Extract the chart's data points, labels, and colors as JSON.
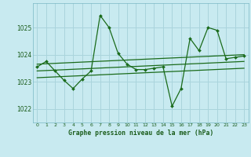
{
  "title": "Graphe pression niveau de la mer (hPa)",
  "bg_color": "#c8eaf0",
  "grid_color": "#aad4dc",
  "line_color": "#1a6b1a",
  "xlim": [
    -0.5,
    23.5
  ],
  "ylim": [
    1021.5,
    1025.9
  ],
  "xticks": [
    0,
    1,
    2,
    3,
    4,
    5,
    6,
    7,
    8,
    9,
    10,
    11,
    12,
    13,
    14,
    15,
    16,
    17,
    18,
    19,
    20,
    21,
    22,
    23
  ],
  "yticks": [
    1022,
    1023,
    1024,
    1025
  ],
  "main_x": [
    0,
    1,
    2,
    3,
    4,
    5,
    6,
    7,
    8,
    9,
    10,
    11,
    12,
    13,
    14,
    15,
    16,
    17,
    18,
    19,
    20,
    21,
    22,
    23
  ],
  "main_y": [
    1023.55,
    1023.75,
    1023.4,
    1023.05,
    1022.75,
    1023.1,
    1023.4,
    1025.45,
    1025.0,
    1024.05,
    1023.65,
    1023.45,
    1023.45,
    1023.5,
    1023.55,
    1022.1,
    1022.75,
    1024.6,
    1024.15,
    1025.0,
    1024.9,
    1023.85,
    1023.9,
    1023.95
  ],
  "trend1_x": [
    0,
    23
  ],
  "trend1_y": [
    1023.65,
    1024.0
  ],
  "trend2_x": [
    0,
    23
  ],
  "trend2_y": [
    1023.4,
    1023.75
  ],
  "trend3_x": [
    0,
    23
  ],
  "trend3_y": [
    1023.15,
    1023.5
  ]
}
